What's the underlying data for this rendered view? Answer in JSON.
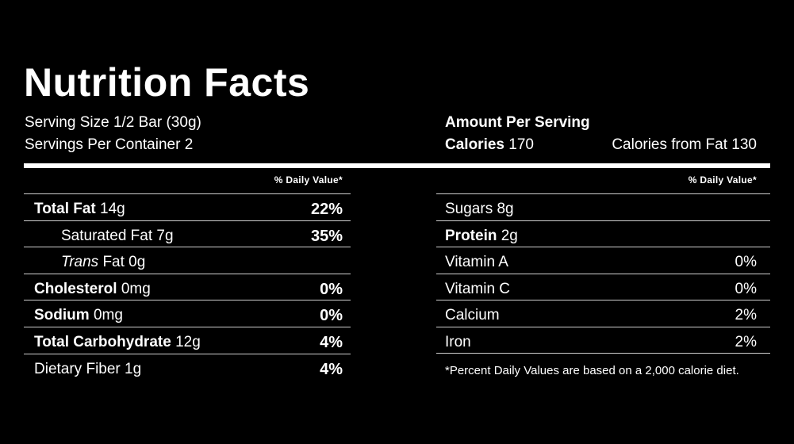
{
  "title": "Nutrition Facts",
  "serving": {
    "size": "Serving Size 1/2 Bar (30g)",
    "per_container": "Servings Per Container 2"
  },
  "amount_per_serving": {
    "heading": "Amount Per Serving",
    "calories_label": "Calories",
    "calories_value": "170",
    "calories_from_fat": "Calories from Fat 130"
  },
  "daily_value_header": "% Daily Value*",
  "left_rows": [
    {
      "label": "Total Fat",
      "amount": "14g",
      "dv": "22%"
    },
    {
      "label": "Saturated Fat",
      "amount": "7g",
      "dv": "35%"
    },
    {
      "label": "Trans",
      "amount": "Fat 0g",
      "dv": ""
    },
    {
      "label": "Cholesterol",
      "amount": "0mg",
      "dv": "0%"
    },
    {
      "label": "Sodium",
      "amount": "0mg",
      "dv": "0%"
    },
    {
      "label": "Total Carbohydrate",
      "amount": "12g",
      "dv": "4%"
    },
    {
      "label": "Dietary Fiber",
      "amount": "1g",
      "dv": "4%"
    }
  ],
  "right_rows": [
    {
      "label": "Sugars 8g",
      "value": ""
    },
    {
      "label": "Protein",
      "amount": "2g",
      "value": ""
    },
    {
      "label": "Vitamin A",
      "value": "0%"
    },
    {
      "label": "Vitamin C",
      "value": "0%"
    },
    {
      "label": "Calcium",
      "value": "2%"
    },
    {
      "label": "Iron",
      "value": "2%"
    }
  ],
  "footnote": "*Percent Daily Values are based on a 2,000 calorie diet.",
  "colors": {
    "background": "#000000",
    "text": "#ffffff",
    "rule": "#cfcfcf"
  }
}
